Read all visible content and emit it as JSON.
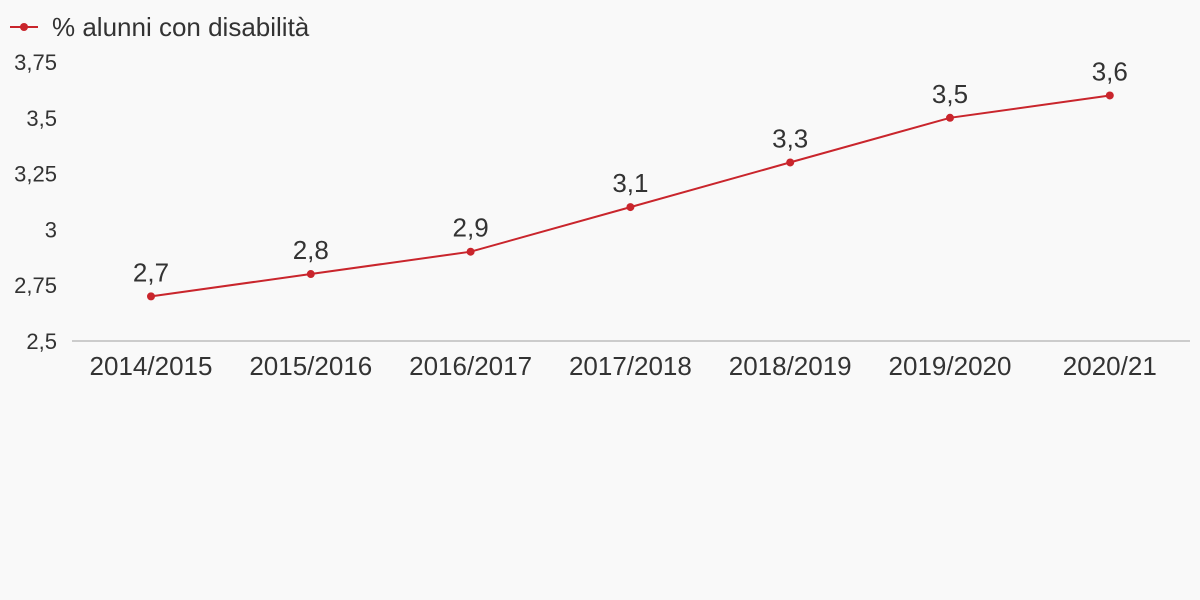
{
  "chart_data": {
    "type": "line",
    "categories": [
      "2014/2015",
      "2015/2016",
      "2016/2017",
      "2017/2018",
      "2018/2019",
      "2019/2020",
      "2020/21"
    ],
    "series": [
      {
        "name": "% alunni con disabilità",
        "values": [
          2.7,
          2.8,
          2.9,
          3.1,
          3.3,
          3.5,
          3.6
        ],
        "value_labels": [
          "2,7",
          "2,8",
          "2,9",
          "3,1",
          "3,3",
          "3,5",
          "3,6"
        ]
      }
    ],
    "y_ticks": [
      "2,5",
      "2,75",
      "3",
      "3,25",
      "3,5",
      "3,75"
    ],
    "ylim": [
      2.5,
      3.75
    ],
    "legend_position": "top-left",
    "grid": false,
    "colors": {
      "series": "#c9252c",
      "axis": "#cccccc",
      "text": "#333333",
      "background": "#f9f9f9"
    }
  }
}
